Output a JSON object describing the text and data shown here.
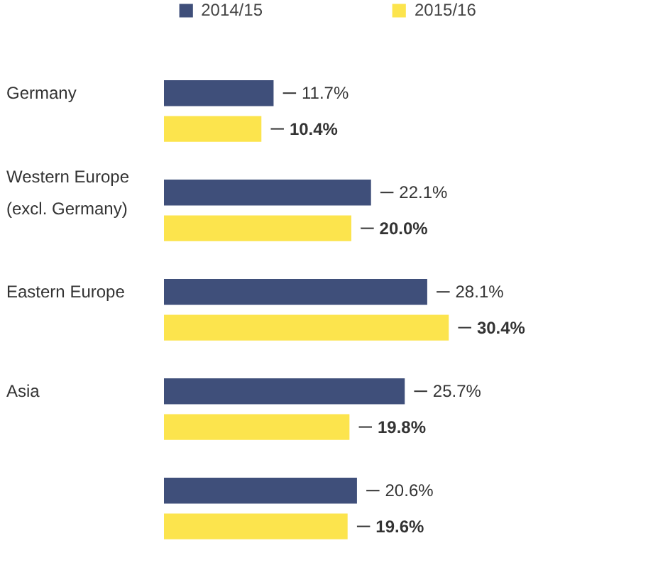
{
  "chart_data": {
    "type": "bar",
    "orientation": "horizontal",
    "categories": [
      "Germany",
      "Western Europe\n(excl. Germany)",
      "Eastern Europe",
      "Asia",
      null
    ],
    "series": [
      {
        "name": "2014/15",
        "color": "#3f4f7a",
        "values": [
          11.7,
          22.1,
          28.1,
          25.7,
          20.6
        ],
        "value_labels": [
          "11.7%",
          "22.1%",
          "28.1%",
          "25.7%",
          "20.6%"
        ]
      },
      {
        "name": "2015/16",
        "color": "#fce44d",
        "values": [
          10.4,
          20.0,
          30.4,
          19.8,
          19.6
        ],
        "value_labels": [
          "10.4%",
          "20.0%",
          "30.4%",
          "19.8%",
          "19.6%"
        ]
      }
    ],
    "legend": "top",
    "grid": false
  }
}
